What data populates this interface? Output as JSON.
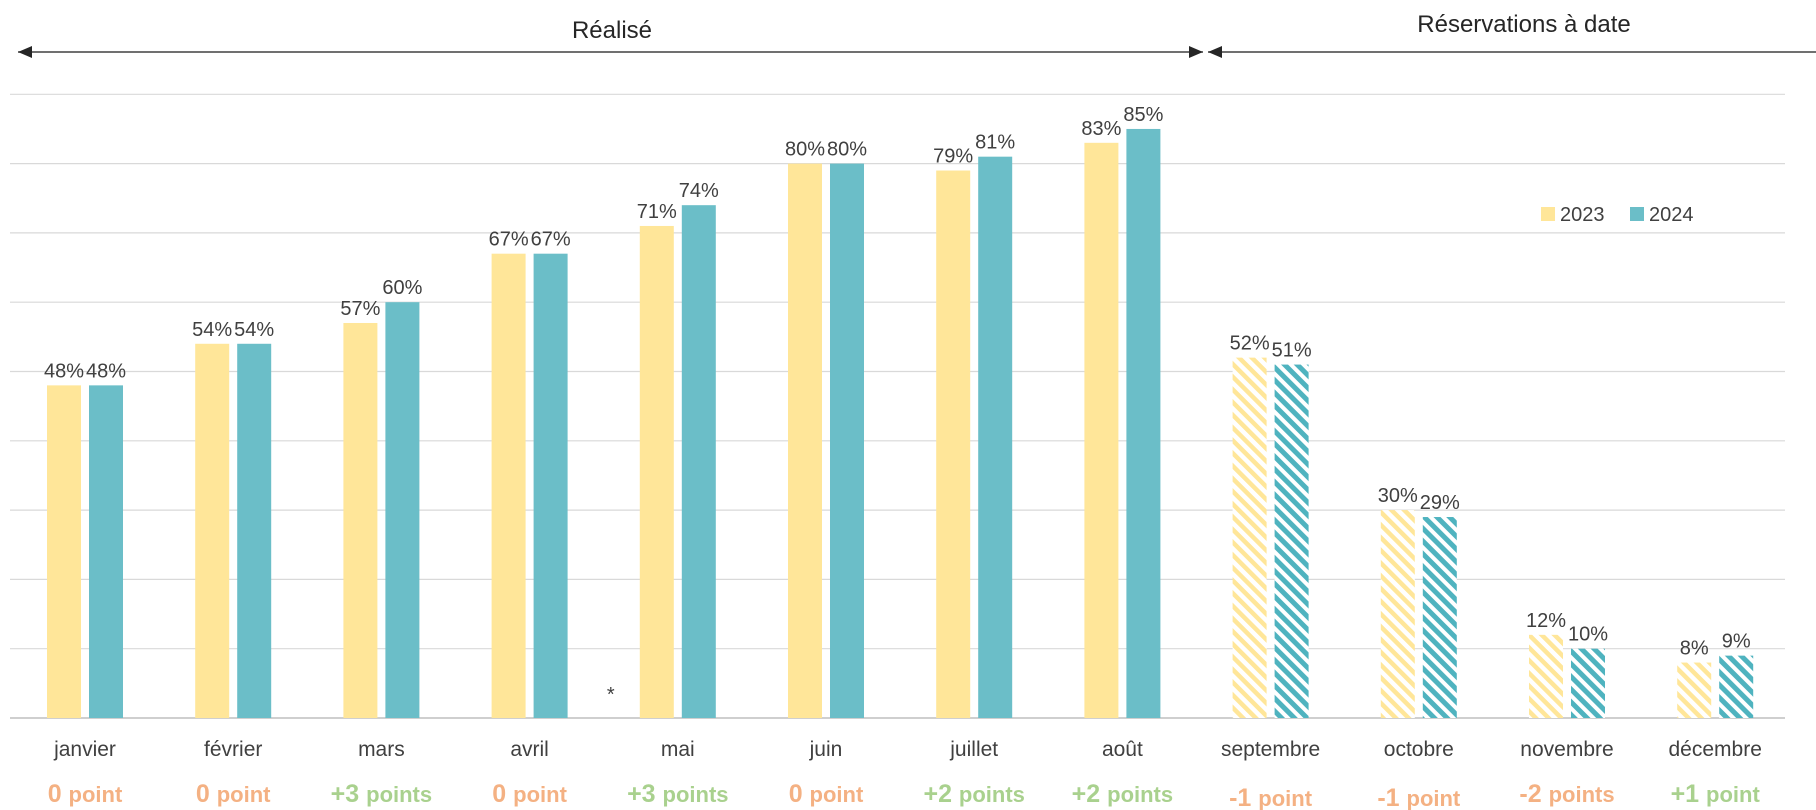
{
  "chart_data": {
    "type": "bar",
    "title": "",
    "xlabel": "",
    "ylabel": "",
    "ylim": [
      0,
      90
    ],
    "grid": true,
    "legend_position": "top-right",
    "categories": [
      "janvier",
      "février",
      "mars",
      "avril",
      "mai",
      "juin",
      "juillet",
      "août",
      "septembre",
      "octobre",
      "novembre",
      "décembre"
    ],
    "series": [
      {
        "name": "2023",
        "color": "#FFE699",
        "values": [
          48,
          54,
          57,
          67,
          71,
          80,
          79,
          83,
          52,
          30,
          12,
          8
        ],
        "labels": [
          "48%",
          "54%",
          "57%",
          "67%",
          "71%",
          "80%",
          "79%",
          "83%",
          "52%",
          "30%",
          "12%",
          "8%"
        ]
      },
      {
        "name": "2024",
        "color": "#6BBEC8",
        "values": [
          48,
          54,
          60,
          67,
          74,
          80,
          81,
          85,
          51,
          29,
          10,
          9
        ],
        "labels": [
          "48%",
          "54%",
          "60%",
          "67%",
          "74%",
          "80%",
          "81%",
          "85%",
          "51%",
          "29%",
          "10%",
          "9%"
        ]
      }
    ],
    "hatched_categories": [
      "septembre",
      "octobre",
      "novembre",
      "décembre"
    ],
    "periods": [
      {
        "label": "Réalisé",
        "from": "janvier",
        "to": "août"
      },
      {
        "label": "Réservations à date",
        "from": "septembre",
        "to": "décembre"
      }
    ],
    "deltas": [
      {
        "num": "0",
        "unit": "point",
        "tone": "neutral"
      },
      {
        "num": "0",
        "unit": "point",
        "tone": "neutral"
      },
      {
        "num": "+3",
        "unit": "points",
        "tone": "positive"
      },
      {
        "num": "0",
        "unit": "point",
        "tone": "neutral"
      },
      {
        "num": "+3",
        "unit": "points",
        "tone": "positive"
      },
      {
        "num": "0",
        "unit": "point",
        "tone": "neutral"
      },
      {
        "num": "+2",
        "unit": "points",
        "tone": "positive"
      },
      {
        "num": "+2",
        "unit": "points",
        "tone": "positive"
      },
      {
        "num": "-1",
        "unit": "point",
        "tone": "negative"
      },
      {
        "num": "-1",
        "unit": "point",
        "tone": "negative"
      },
      {
        "num": "-2",
        "unit": "points",
        "tone": "negative"
      },
      {
        "num": "+1",
        "unit": "point",
        "tone": "positive"
      }
    ],
    "annotations": [
      {
        "text": "*",
        "category": "mai"
      }
    ]
  },
  "colors": {
    "positive": "#A9D18E",
    "neutral": "#F4B183",
    "negative": "#F4B183",
    "gridline": "#D9D9D9",
    "axis": "#BFBFBF",
    "arrow": "#404040"
  }
}
